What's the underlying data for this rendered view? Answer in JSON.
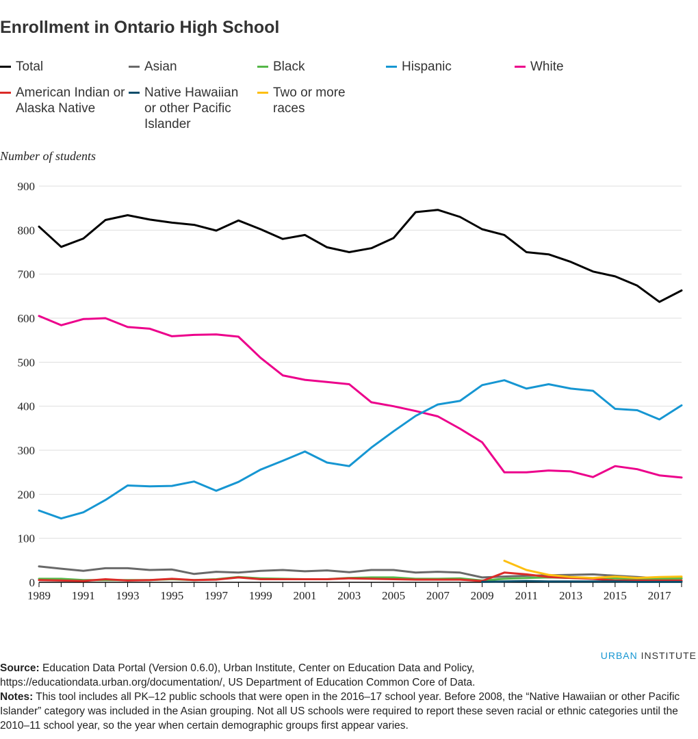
{
  "title": "Enrollment in Ontario High School",
  "legend": [
    {
      "label": "Total",
      "color": "#000000"
    },
    {
      "label": "Asian",
      "color": "#696969"
    },
    {
      "label": "Black",
      "color": "#55b748"
    },
    {
      "label": "Hispanic",
      "color": "#1696d2"
    },
    {
      "label": "White",
      "color": "#ec008b"
    },
    {
      "label": "American Indian or Alaska Native",
      "color": "#db2b27"
    },
    {
      "label": "Native Hawaiian or other Pacific Islander",
      "color": "#0a4c6a"
    },
    {
      "label": "Two or more races",
      "color": "#fdbf11"
    }
  ],
  "y_axis_label": "Number of students",
  "brand": {
    "part1": "URBAN",
    "part2": "INSTITUTE"
  },
  "source": {
    "label": "Source:",
    "text": "Education Data Portal (Version 0.6.0), Urban Institute, Center on Education Data and Policy, https://educationdata.urban.org/documentation/, US Department of Education Common Core of Data."
  },
  "notes": {
    "label": "Notes:",
    "text": "This tool includes all PK–12 public schools that were open in the 2016–17 school year. Before 2008, the “Native Hawaiian or other Pacific Islander” category was included in the Asian grouping. Not all US schools were required to report these seven racial or ethnic categories until the 2010–11 school year, so the year when certain demographic groups first appear varies."
  },
  "chart_data": {
    "type": "line",
    "title": "Enrollment in Ontario High School",
    "xlabel": "",
    "ylabel": "Number of students",
    "xlim": [
      1989,
      2018
    ],
    "ylim": [
      0,
      900
    ],
    "y_ticks": [
      0,
      100,
      200,
      300,
      400,
      500,
      600,
      700,
      800,
      900
    ],
    "x_ticks": [
      1989,
      1991,
      1993,
      1995,
      1997,
      1999,
      2001,
      2003,
      2005,
      2007,
      2009,
      2011,
      2013,
      2015,
      2017
    ],
    "grid": true,
    "x": [
      1989,
      1990,
      1991,
      1992,
      1993,
      1994,
      1995,
      1996,
      1997,
      1998,
      1999,
      2000,
      2001,
      2002,
      2003,
      2004,
      2005,
      2006,
      2007,
      2008,
      2009,
      2010,
      2011,
      2012,
      2013,
      2014,
      2015,
      2016,
      2017,
      2018
    ],
    "series": [
      {
        "name": "Total",
        "color": "#000000",
        "values": [
          808,
          762,
          781,
          823,
          834,
          824,
          817,
          812,
          799,
          822,
          802,
          780,
          789,
          761,
          750,
          759,
          782,
          841,
          846,
          830,
          802,
          789,
          750,
          745,
          728,
          706,
          695,
          674,
          637,
          663
        ]
      },
      {
        "name": "White",
        "color": "#ec008b",
        "values": [
          605,
          584,
          598,
          600,
          580,
          576,
          559,
          562,
          563,
          558,
          510,
          470,
          460,
          455,
          450,
          409,
          400,
          389,
          377,
          349,
          318,
          250,
          250,
          254,
          252,
          239,
          264,
          257,
          243,
          238
        ]
      },
      {
        "name": "Hispanic",
        "color": "#1696d2",
        "values": [
          163,
          145,
          159,
          187,
          220,
          218,
          219,
          229,
          208,
          228,
          256,
          276,
          297,
          272,
          264,
          306,
          343,
          378,
          404,
          412,
          448,
          459,
          440,
          450,
          440,
          435,
          394,
          391,
          370,
          402
        ]
      },
      {
        "name": "Asian",
        "color": "#696969",
        "values": [
          36,
          31,
          26,
          32,
          32,
          28,
          29,
          19,
          24,
          22,
          26,
          28,
          25,
          27,
          23,
          28,
          28,
          22,
          24,
          22,
          11,
          13,
          15,
          16,
          17,
          18,
          15,
          12,
          9,
          9
        ]
      },
      {
        "name": "Black",
        "color": "#55b748",
        "values": [
          8,
          8,
          5,
          5,
          5,
          5,
          7,
          5,
          7,
          12,
          9,
          8,
          7,
          7,
          10,
          11,
          11,
          8,
          8,
          9,
          4,
          8,
          10,
          11,
          10,
          9,
          9,
          8,
          8,
          9
        ]
      },
      {
        "name": "American Indian or Alaska Native",
        "color": "#db2b27",
        "values": [
          5,
          4,
          3,
          7,
          4,
          5,
          8,
          5,
          6,
          11,
          7,
          7,
          7,
          7,
          9,
          8,
          7,
          6,
          6,
          6,
          3,
          22,
          18,
          12,
          10,
          8,
          4,
          4,
          4,
          4
        ]
      },
      {
        "name": "Native Hawaiian or other Pacific Islander",
        "color": "#0a4c6a",
        "values": [
          null,
          null,
          null,
          null,
          null,
          null,
          null,
          null,
          null,
          null,
          null,
          null,
          null,
          null,
          null,
          null,
          null,
          null,
          null,
          null,
          1,
          2,
          3,
          2,
          2,
          2,
          2,
          1,
          1,
          1
        ]
      },
      {
        "name": "Two or more races",
        "color": "#fdbf11",
        "values": [
          null,
          null,
          null,
          null,
          null,
          null,
          null,
          null,
          null,
          null,
          null,
          null,
          null,
          null,
          null,
          null,
          null,
          null,
          null,
          null,
          null,
          49,
          28,
          17,
          12,
          10,
          13,
          10,
          12,
          13
        ]
      }
    ]
  }
}
